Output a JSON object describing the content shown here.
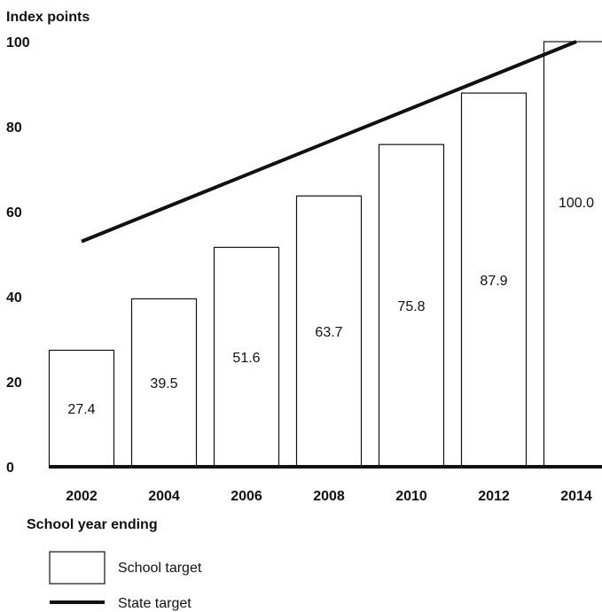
{
  "chart_data": {
    "type": "bar",
    "ylabel": "Index points",
    "xlabel": "School year ending",
    "categories": [
      "2002",
      "2004",
      "2006",
      "2008",
      "2010",
      "2012",
      "2014"
    ],
    "y_ticks": [
      "0",
      "20",
      "40",
      "60",
      "80",
      "100"
    ],
    "ylim": [
      0,
      100
    ],
    "series": [
      {
        "name": "School target",
        "kind": "bar",
        "values": [
          27.4,
          39.5,
          51.6,
          63.7,
          75.8,
          87.9,
          100.0
        ],
        "labels": [
          "27.4",
          "39.5",
          "51.6",
          "63.7",
          "75.8",
          "87.9",
          "100.0"
        ]
      },
      {
        "name": "State target",
        "kind": "line",
        "points": [
          [
            2002,
            53
          ],
          [
            2014,
            100
          ]
        ]
      }
    ],
    "grid": false,
    "legend_position": "bottom-left"
  }
}
